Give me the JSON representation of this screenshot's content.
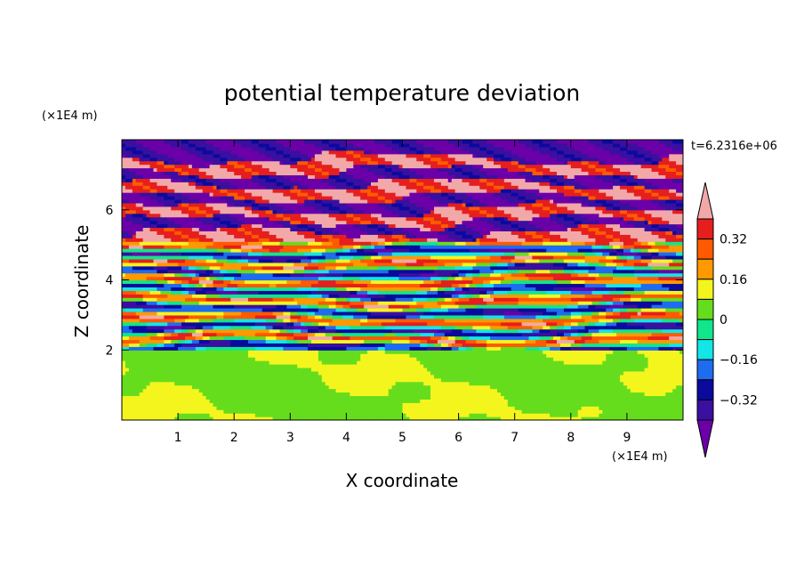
{
  "chart_data": {
    "type": "heatmap",
    "title": "potential temperature deviation",
    "xlabel": "X coordinate",
    "ylabel": "Z coordinate",
    "x_unit": "(×1E4 m)",
    "y_unit": "(×1E4 m)",
    "time_label": "t=6.2316e+06",
    "xlim": [
      0,
      10
    ],
    "ylim": [
      0,
      8
    ],
    "x_ticks": [
      1,
      2,
      3,
      4,
      5,
      6,
      7,
      8,
      9
    ],
    "y_ticks": [
      2,
      4,
      6
    ],
    "colorbar": {
      "levels": [
        -0.4,
        -0.32,
        -0.24,
        -0.16,
        -0.08,
        0,
        0.08,
        0.16,
        0.24,
        0.32,
        0.4
      ],
      "labels": [
        "0.32",
        "0.16",
        "0",
        "−0.16",
        "−0.32"
      ],
      "label_values": [
        0.32,
        0.16,
        0,
        -0.16,
        -0.32
      ],
      "colors": [
        "#6b00a8",
        "#3b0fa0",
        "#0a0a9e",
        "#1e6cf0",
        "#12e6e6",
        "#10e68a",
        "#66dd1c",
        "#f5f51e",
        "#ff9900",
        "#ff5a00",
        "#e61e1e",
        "#f2a8a8"
      ],
      "extend": "both"
    },
    "field_description_values": {
      "upper_bands": [
        {
          "z": 7.7,
          "value": -0.45
        },
        {
          "z": 7.25,
          "value": 0.45
        },
        {
          "z": 6.95,
          "value": -0.45
        },
        {
          "z": 6.55,
          "value": 0.45
        },
        {
          "z": 6.2,
          "value": -0.45
        },
        {
          "z": 5.85,
          "value": 0.45
        },
        {
          "z": 5.5,
          "value": -0.45
        },
        {
          "z": 5.2,
          "value": 0.45
        }
      ],
      "lower_layer_range": [
        0,
        2
      ],
      "lower_layer_values": [
        0.0,
        0.08
      ]
    }
  }
}
